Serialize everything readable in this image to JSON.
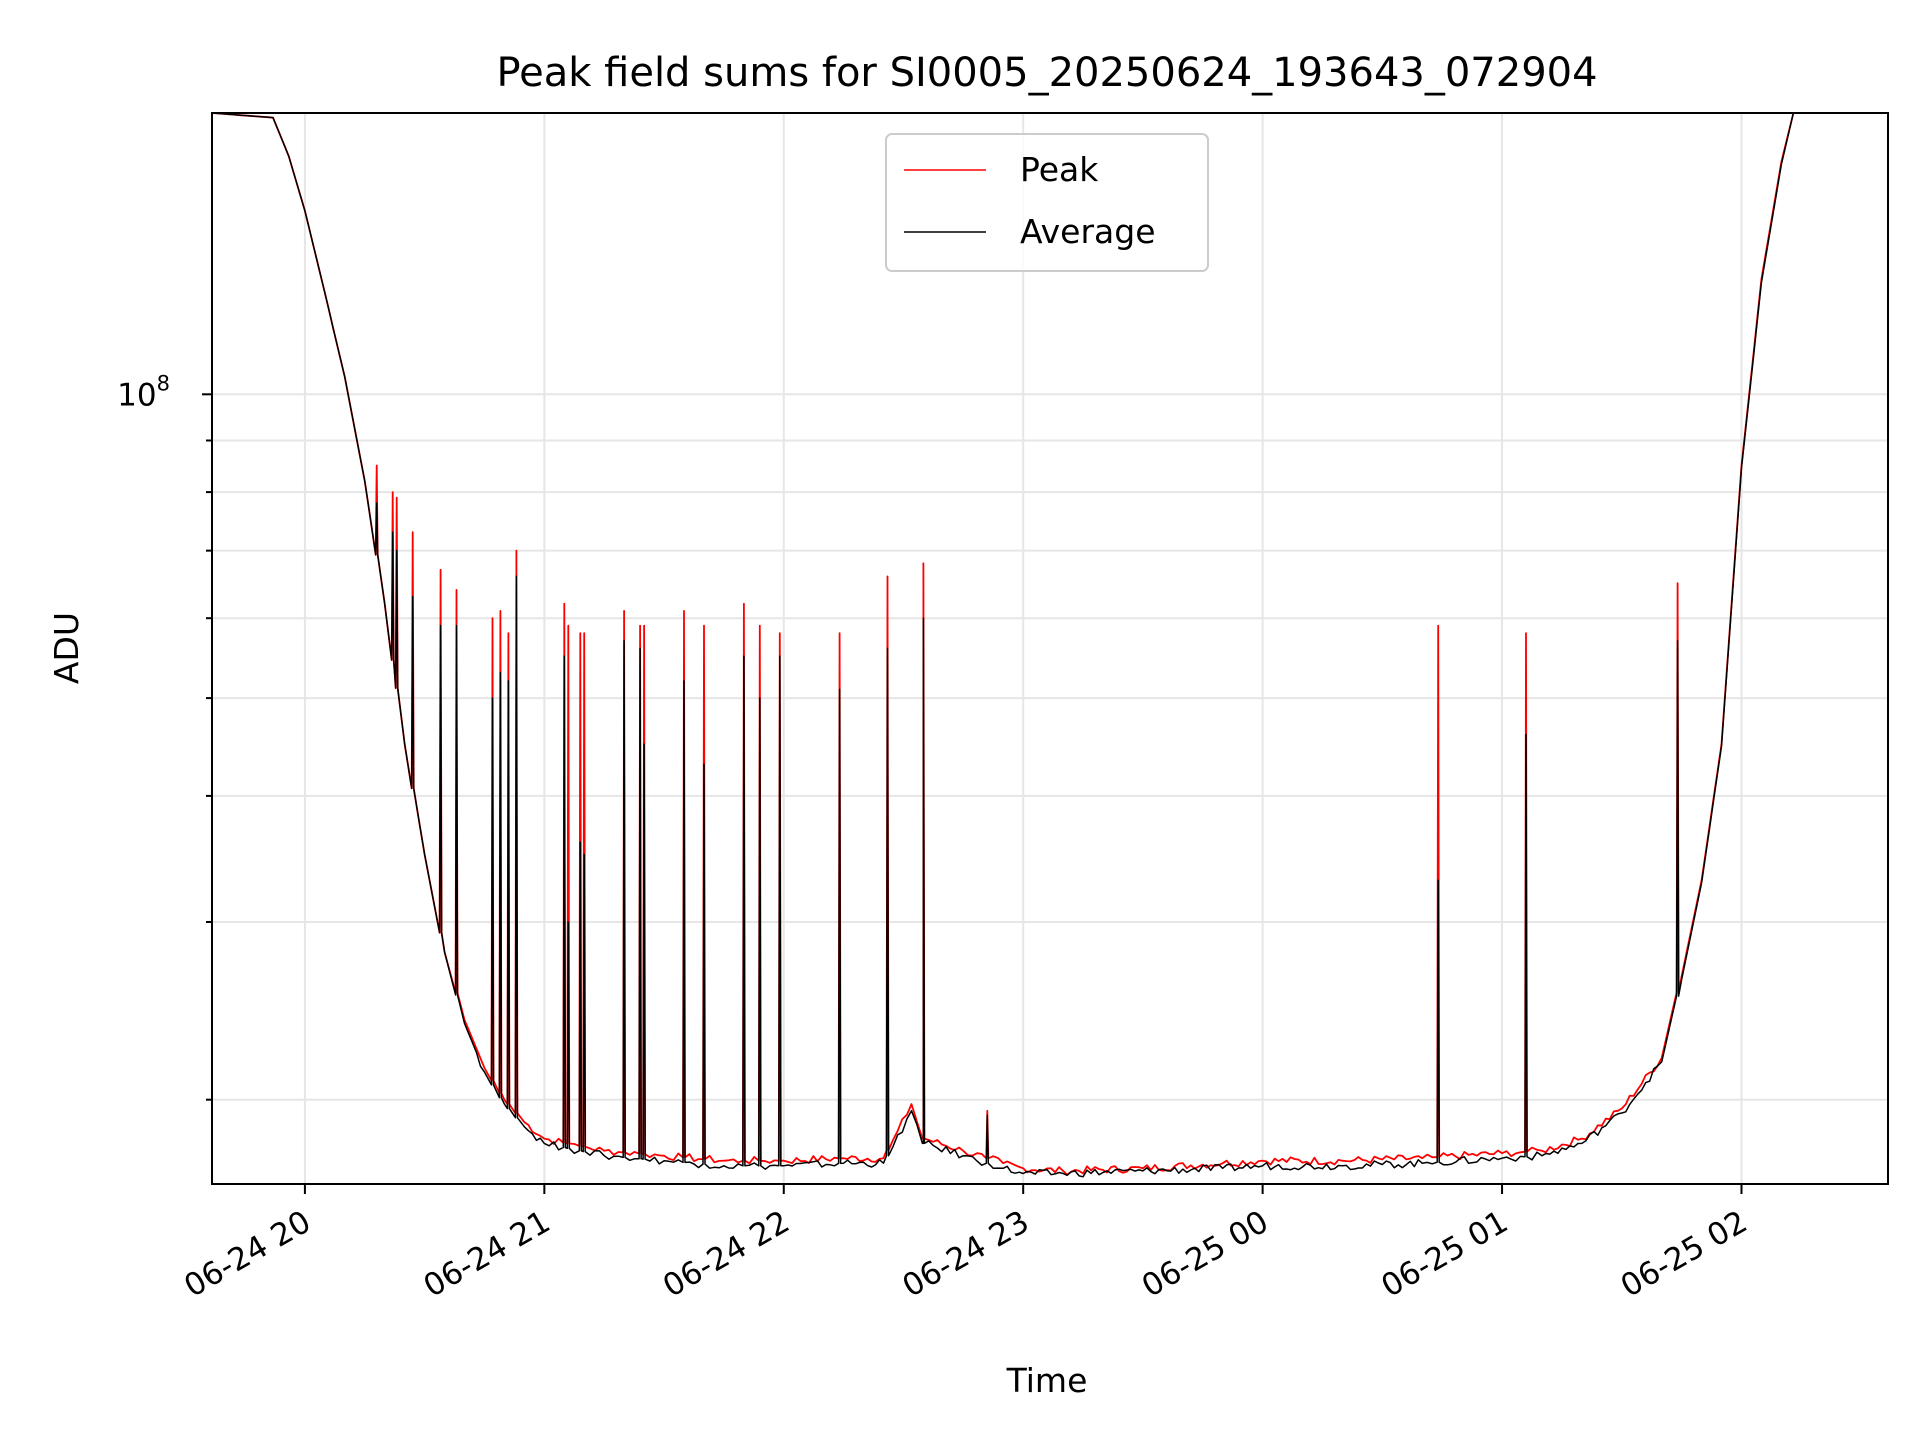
{
  "chart_data": {
    "type": "line",
    "title": "Peak field sums for SI0005_20250624_193643_072904",
    "xlabel": "Time",
    "ylabel": "ADU",
    "yscale": "log",
    "grid": true,
    "legend_position": "upper center",
    "x_range": [
      "2025-06-24 19:36:43",
      "2025-06-25 02:36:43"
    ],
    "x_ticks": [
      "06-24 20",
      "06-24 21",
      "06-24 22",
      "06-24 23",
      "06-25 00",
      "06-25 01",
      "06-25 02"
    ],
    "x_tick_values": [
      "2025-06-24 20:00",
      "2025-06-24 21:00",
      "2025-06-24 22:00",
      "2025-06-24 23:00",
      "2025-06-25 00:00",
      "2025-06-25 01:00",
      "2025-06-25 02:00"
    ],
    "y_tick_label": {
      "base": "10",
      "exponent": "8"
    },
    "y_range": [
      16500000,
      190000000
    ],
    "x": [
      "2025-06-24 19:36:43",
      "2025-06-24 19:52",
      "2025-06-24 19:56",
      "2025-06-24 20:00",
      "2025-06-24 20:05",
      "2025-06-24 20:10",
      "2025-06-24 20:15",
      "2025-06-24 20:20",
      "2025-06-24 20:25",
      "2025-06-24 20:30",
      "2025-06-24 20:35",
      "2025-06-24 20:40",
      "2025-06-24 20:45",
      "2025-06-24 20:50",
      "2025-06-24 20:55",
      "2025-06-24 21:00",
      "2025-06-24 21:15",
      "2025-06-24 21:30",
      "2025-06-24 21:45",
      "2025-06-24 22:00",
      "2025-06-24 22:15",
      "2025-06-24 22:25",
      "2025-06-24 22:32",
      "2025-06-24 22:35",
      "2025-06-24 22:45",
      "2025-06-24 22:55",
      "2025-06-24 23:00",
      "2025-06-24 23:10",
      "2025-06-24 23:30",
      "2025-06-24 23:50",
      "2025-06-25 00:00",
      "2025-06-25 00:20",
      "2025-06-25 00:40",
      "2025-06-25 01:00",
      "2025-06-25 01:10",
      "2025-06-25 01:20",
      "2025-06-25 01:30",
      "2025-06-25 01:40",
      "2025-06-25 01:45",
      "2025-06-25 01:50",
      "2025-06-25 01:55",
      "2025-06-25 02:00",
      "2025-06-25 02:05",
      "2025-06-25 02:10",
      "2025-06-25 02:13",
      "2025-06-25 02:36:43"
    ],
    "series": [
      {
        "name": "Peak",
        "color": "#ff0000",
        "values": [
          190000000,
          188000000,
          172000000,
          152000000,
          126000000,
          104000000,
          82000000,
          62000000,
          45000000,
          35000000,
          28000000,
          24000000,
          21500000,
          20000000,
          19000000,
          18300000,
          17800000,
          17600000,
          17400000,
          17400000,
          17500000,
          17500000,
          19800000,
          18300000,
          17800000,
          17300000,
          17100000,
          17000000,
          17100000,
          17300000,
          17400000,
          17400000,
          17500000,
          17700000,
          17800000,
          18300000,
          19600000,
          22000000,
          26500000,
          33000000,
          45000000,
          85000000,
          130000000,
          170000000,
          190000000,
          190000000
        ]
      },
      {
        "name": "Average",
        "color": "#000000",
        "values": [
          190000000,
          188000000,
          172000000,
          152000000,
          126000000,
          104000000,
          82000000,
          62000000,
          45000000,
          35000000,
          28000000,
          23800000,
          21300000,
          19800000,
          18800000,
          18100000,
          17600000,
          17400000,
          17200000,
          17200000,
          17300000,
          17300000,
          19500000,
          18100000,
          17600000,
          17100000,
          16900000,
          16900000,
          17000000,
          17100000,
          17200000,
          17200000,
          17300000,
          17500000,
          17600000,
          18100000,
          19400000,
          21800000,
          26300000,
          32800000,
          44800000,
          84500000,
          129000000,
          169000000,
          190000000,
          190000000
        ]
      }
    ],
    "spikes": [
      {
        "x": "2025-06-24 20:18",
        "peak": 85000000,
        "average": 78000000
      },
      {
        "x": "2025-06-24 20:22",
        "peak": 80000000,
        "average": 73000000
      },
      {
        "x": "2025-06-24 20:23",
        "peak": 79000000,
        "average": 70000000
      },
      {
        "x": "2025-06-24 20:27",
        "peak": 73000000,
        "average": 63000000
      },
      {
        "x": "2025-06-24 20:34",
        "peak": 67000000,
        "average": 59000000
      },
      {
        "x": "2025-06-24 20:38",
        "peak": 64000000,
        "average": 59000000
      },
      {
        "x": "2025-06-24 20:47",
        "peak": 60000000,
        "average": 50000000
      },
      {
        "x": "2025-06-24 20:49",
        "peak": 61000000,
        "average": 53000000
      },
      {
        "x": "2025-06-24 20:51",
        "peak": 58000000,
        "average": 52000000
      },
      {
        "x": "2025-06-24 20:53",
        "peak": 70000000,
        "average": 66000000
      },
      {
        "x": "2025-06-24 21:05",
        "peak": 62000000,
        "average": 55000000
      },
      {
        "x": "2025-06-24 21:06",
        "peak": 59000000,
        "average": 30000000
      },
      {
        "x": "2025-06-24 21:09",
        "peak": 58000000,
        "average": 36000000
      },
      {
        "x": "2025-06-24 21:10",
        "peak": 58000000,
        "average": 35000000
      },
      {
        "x": "2025-06-24 21:20",
        "peak": 61000000,
        "average": 57000000
      },
      {
        "x": "2025-06-24 21:24",
        "peak": 59000000,
        "average": 56000000
      },
      {
        "x": "2025-06-24 21:25",
        "peak": 59000000,
        "average": 45000000
      },
      {
        "x": "2025-06-24 21:35",
        "peak": 61000000,
        "average": 52000000
      },
      {
        "x": "2025-06-24 21:40",
        "peak": 59000000,
        "average": 43000000
      },
      {
        "x": "2025-06-24 21:50",
        "peak": 62000000,
        "average": 55000000
      },
      {
        "x": "2025-06-24 21:54",
        "peak": 59000000,
        "average": 50000000
      },
      {
        "x": "2025-06-24 21:59",
        "peak": 58000000,
        "average": 55000000
      },
      {
        "x": "2025-06-24 22:14",
        "peak": 58000000,
        "average": 51000000
      },
      {
        "x": "2025-06-24 22:26",
        "peak": 66000000,
        "average": 56000000
      },
      {
        "x": "2025-06-24 22:35",
        "peak": 68000000,
        "average": 60000000
      },
      {
        "x": "2025-06-24 22:51",
        "peak": 19500000,
        "average": 19300000
      },
      {
        "x": "2025-06-25 00:44",
        "peak": 59000000,
        "average": 33000000
      },
      {
        "x": "2025-06-25 01:06",
        "peak": 58000000,
        "average": 46000000
      },
      {
        "x": "2025-06-25 01:44",
        "peak": 65000000,
        "average": 57000000
      }
    ]
  }
}
